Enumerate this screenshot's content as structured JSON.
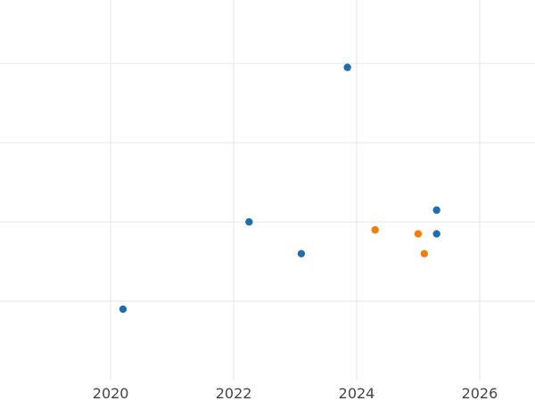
{
  "chart_data": {
    "type": "scatter",
    "title": "",
    "xlabel": "",
    "ylabel": "",
    "grid": true,
    "legend": "none",
    "x_ticks": [
      2020,
      2022,
      2024,
      2026
    ],
    "x_tick_labels": [
      "2020",
      "2022",
      "2024",
      "2026"
    ],
    "y_gridlines": [
      1,
      2,
      3,
      4
    ],
    "xlim": [
      2018.2,
      2026.9
    ],
    "ylim": [
      0,
      4.8
    ],
    "series": [
      {
        "color": "#1f6fb0",
        "points": [
          {
            "x": 2020.2,
            "y": 0.9
          },
          {
            "x": 2022.25,
            "y": 2.0
          },
          {
            "x": 2023.1,
            "y": 1.6
          },
          {
            "x": 2023.85,
            "y": 3.95
          },
          {
            "x": 2025.3,
            "y": 2.15
          },
          {
            "x": 2025.3,
            "y": 1.85
          }
        ]
      },
      {
        "color": "#f57c0a",
        "points": [
          {
            "x": 2024.3,
            "y": 1.9
          },
          {
            "x": 2025.0,
            "y": 1.85
          },
          {
            "x": 2025.1,
            "y": 1.6
          }
        ]
      }
    ]
  }
}
